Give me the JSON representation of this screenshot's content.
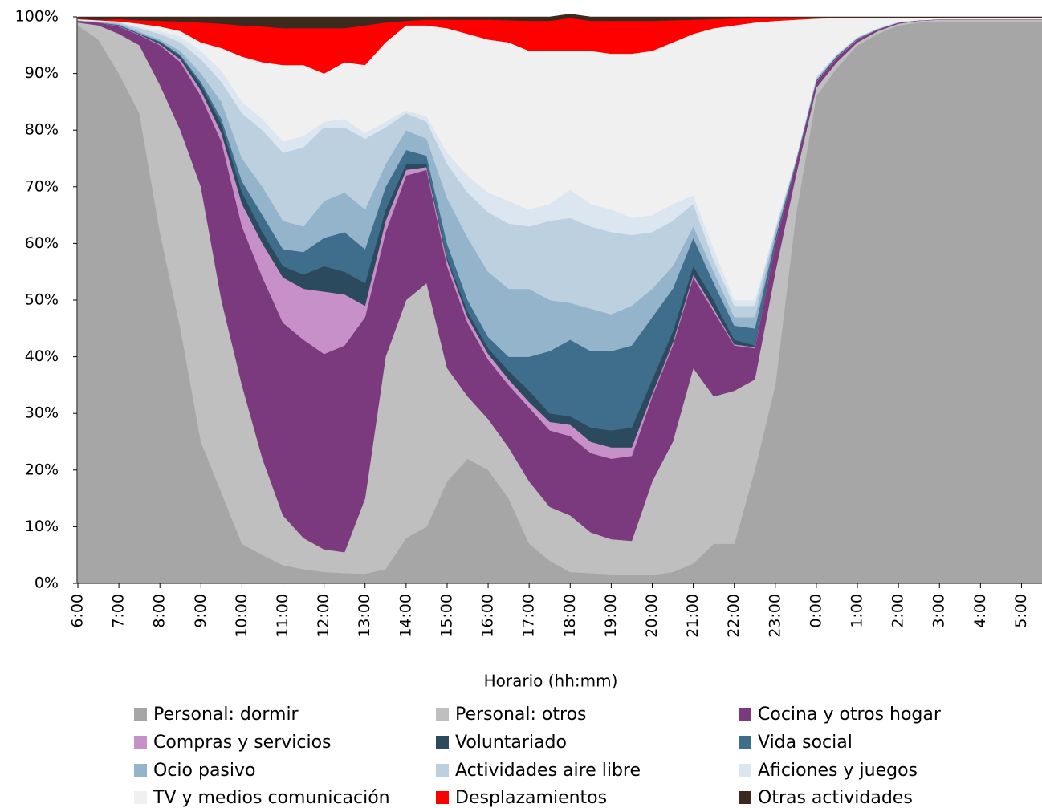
{
  "chart_data": {
    "type": "stacked_area",
    "x_label": "Horario (hh:mm)",
    "categories": [
      "6:00",
      null,
      "7:00",
      null,
      "8:00",
      null,
      "9:00",
      null,
      "10:00",
      null,
      "11:00",
      null,
      "12:00",
      null,
      "13:00",
      null,
      "14:00",
      null,
      "15:00",
      null,
      "16:00",
      null,
      "17:00",
      null,
      "18:00",
      null,
      "19:00",
      null,
      "20:00",
      null,
      "21:00",
      null,
      "22:00",
      null,
      "23:00",
      null,
      "0:00",
      null,
      "1:00",
      null,
      "2:00",
      null,
      "3:00",
      null,
      "4:00",
      null,
      "5:00",
      null
    ],
    "ylim": [
      0,
      100
    ],
    "yticks": [
      {
        "value": 0,
        "label": "0%"
      },
      {
        "value": 10,
        "label": "10%"
      },
      {
        "value": 20,
        "label": "20%"
      },
      {
        "value": 30,
        "label": "30%"
      },
      {
        "value": 40,
        "label": "40%"
      },
      {
        "value": 50,
        "label": "50%"
      },
      {
        "value": 60,
        "label": "60%"
      },
      {
        "value": 70,
        "label": "70%"
      },
      {
        "value": 80,
        "label": "80%"
      },
      {
        "value": 90,
        "label": "90%"
      },
      {
        "value": 100,
        "label": "100%"
      }
    ],
    "legend": "bottom",
    "series": [
      {
        "name": "Personal: dormir",
        "color": "#a6a6a6",
        "values": [
          98.5,
          96,
          90,
          83,
          62,
          45,
          25,
          16,
          7,
          5,
          3.2,
          2.5,
          2,
          1.8,
          1.7,
          2.5,
          8,
          10,
          18,
          22,
          20,
          15,
          7,
          4,
          2,
          1.8,
          1.6,
          1.5,
          1.5,
          2,
          3.5,
          7,
          7,
          20,
          35,
          65,
          86,
          91,
          95,
          97,
          98.5,
          99,
          99.2,
          99.2,
          99.2,
          99.2,
          99.2,
          99.2
        ]
      },
      {
        "name": "Personal: otros",
        "color": "#bfbfbf",
        "values": [
          0.5,
          2.5,
          7,
          12,
          26,
          35,
          45,
          34,
          28,
          17,
          8.8,
          5.5,
          4,
          3.7,
          13.3,
          37.5,
          42,
          43,
          20,
          11,
          9,
          9,
          11,
          9.5,
          10,
          7.2,
          6.2,
          6,
          16.5,
          23,
          34.5,
          26,
          27,
          16,
          20,
          7,
          1.5,
          1,
          0.5,
          0.5,
          0.3,
          0.3,
          0.3,
          0.3,
          0.3,
          0.3,
          0.3,
          0.3
        ]
      },
      {
        "name": "Cocina y otros hogar",
        "color": "#7b3a7e",
        "values": [
          0.2,
          0.5,
          1.3,
          1.8,
          7,
          12,
          16,
          28,
          28,
          32,
          34,
          35,
          34.5,
          36.5,
          32,
          22,
          22,
          20,
          18,
          13,
          10.5,
          11,
          13,
          13.5,
          14,
          14,
          14.2,
          15,
          15,
          17,
          16,
          15,
          8,
          5.5,
          5,
          2,
          1,
          0.8,
          0.5,
          0.3,
          0.2,
          0.1,
          0.1,
          0.1,
          0.1,
          0.1,
          0.1,
          0.1
        ]
      },
      {
        "name": "Compras y servicios",
        "color": "#c890c8",
        "values": [
          0,
          0,
          0.1,
          0.1,
          0.2,
          0.5,
          1,
          1.5,
          4,
          6,
          8,
          9,
          11,
          9,
          2,
          2,
          1,
          0.5,
          1,
          1,
          1,
          1,
          1,
          1.5,
          2,
          2,
          2,
          1.5,
          0.5,
          0.5,
          0.5,
          0.5,
          0.2,
          0.2,
          0.2,
          0.1,
          0.1,
          0.1,
          0.1,
          0,
          0,
          0,
          0,
          0,
          0,
          0,
          0,
          0
        ]
      },
      {
        "name": "Voluntariado",
        "color": "#2b4a5e",
        "values": [
          0.1,
          0,
          0.1,
          0.1,
          0.3,
          0.5,
          1,
          1.5,
          2,
          2,
          2,
          2.5,
          4.5,
          4,
          4,
          2,
          1,
          0.5,
          0.5,
          1,
          1,
          1.5,
          2,
          1.5,
          1.5,
          2.5,
          3,
          3.5,
          2.5,
          2,
          1.5,
          1.5,
          0.8,
          0.3,
          0.3,
          0.1,
          0.1,
          0.1,
          0,
          0,
          0,
          0,
          0,
          0,
          0,
          0,
          0,
          0
        ]
      },
      {
        "name": "Vida social",
        "color": "#3e6e8c",
        "values": [
          0,
          0,
          0.1,
          0.1,
          0.2,
          0.3,
          0.5,
          1,
          2,
          3,
          3,
          4,
          5,
          7,
          6,
          4,
          2.5,
          1.5,
          2.5,
          2,
          2,
          2.5,
          6,
          11,
          13.5,
          13.5,
          14,
          14.5,
          11,
          7.5,
          5,
          3,
          2.5,
          3,
          0.5,
          0.2,
          0.1,
          0.1,
          0.1,
          0,
          0,
          0,
          0,
          0,
          0,
          0,
          0,
          0
        ]
      },
      {
        "name": "Ocio pasivo",
        "color": "#94b4cc",
        "values": [
          0.1,
          0.1,
          0.2,
          0.3,
          0.3,
          0.7,
          1.5,
          3,
          4,
          5,
          5,
          4.5,
          6.5,
          7,
          7,
          4,
          3.5,
          3,
          8,
          11,
          11.5,
          12,
          12,
          9,
          6.5,
          7.5,
          6.5,
          7,
          5,
          4,
          2,
          2,
          1.5,
          2,
          1,
          0.2,
          0.2,
          0.1,
          0.1,
          0.1,
          0,
          0,
          0,
          0,
          0,
          0,
          0,
          0
        ]
      },
      {
        "name": "Actividades aire libre",
        "color": "#bcd0e0",
        "values": [
          0,
          0.1,
          0.2,
          0.6,
          1,
          1.5,
          2.5,
          3.5,
          8,
          10,
          12,
          14,
          13,
          11.5,
          12.5,
          6.5,
          3,
          3,
          6,
          8,
          10.5,
          11.5,
          11,
          14,
          15,
          14.5,
          14.5,
          12.5,
          10,
          8,
          4,
          2,
          2,
          2,
          0.5,
          0.2,
          0.3,
          0.2,
          0.1,
          0.1,
          0.1,
          0,
          0,
          0,
          0,
          0,
          0,
          0
        ]
      },
      {
        "name": "Aficiones y juegos",
        "color": "#dce6f0",
        "values": [
          0.1,
          0.1,
          0.1,
          0.3,
          0.5,
          1,
          1.5,
          2,
          2,
          2,
          2,
          2,
          1,
          1.5,
          1,
          1,
          0.5,
          1,
          2,
          3,
          3.5,
          4,
          3,
          3,
          5,
          4,
          4,
          3,
          3,
          3,
          1.5,
          2,
          1,
          1,
          0.5,
          0.2,
          0.2,
          0.1,
          0.1,
          0,
          0.1,
          0,
          0,
          0,
          0,
          0,
          0,
          0
        ]
      },
      {
        "name": "TV y medios comunicación",
        "color": "#f0f0f0",
        "values": [
          0.1,
          0.1,
          0.1,
          0.5,
          0.8,
          1,
          1.5,
          4,
          8,
          10,
          13.5,
          12.5,
          8.5,
          10,
          12,
          14,
          15,
          16,
          22,
          25,
          27,
          28,
          28,
          27,
          24.5,
          27,
          27.5,
          29,
          29,
          28.5,
          28.5,
          39,
          48.5,
          49,
          36.3,
          24.5,
          10.2,
          6.3,
          3.4,
          1.9,
          0.7,
          0.5,
          0.3,
          0.3,
          0.3,
          0.3,
          0.3,
          0.3
        ]
      },
      {
        "name": "Desplazamientos",
        "color": "#ff0000",
        "values": [
          0.1,
          0.1,
          0.4,
          0.6,
          1,
          1.7,
          3.5,
          4.3,
          5.5,
          6.3,
          6.5,
          6.5,
          8,
          6,
          7,
          3.5,
          0.8,
          1,
          1.5,
          2.5,
          3.5,
          3.9,
          5.3,
          5.3,
          5.8,
          5.3,
          5.8,
          5.8,
          5.3,
          3.9,
          2.5,
          1.6,
          1.2,
          0.8,
          0.5,
          0.3,
          0.2,
          0.1,
          0,
          0,
          0,
          0,
          0,
          0,
          0,
          0,
          0,
          0
        ]
      },
      {
        "name": "Otras actividades",
        "color": "#3c2a1e",
        "values": [
          0.3,
          0.5,
          0.4,
          0.6,
          0.7,
          0.8,
          1,
          1.2,
          1.5,
          1.7,
          2,
          2,
          2,
          2,
          1.5,
          1,
          0.7,
          0.5,
          0.5,
          0.5,
          0.5,
          0.6,
          0.7,
          0.7,
          0.7,
          0.7,
          0.7,
          0.7,
          0.7,
          0.6,
          0.5,
          0.4,
          0.3,
          0.2,
          0.2,
          0.2,
          0.1,
          0.1,
          0.1,
          0.1,
          0.1,
          0.1,
          0.1,
          0.1,
          0.1,
          0.1,
          0.1,
          0.1
        ]
      }
    ]
  }
}
